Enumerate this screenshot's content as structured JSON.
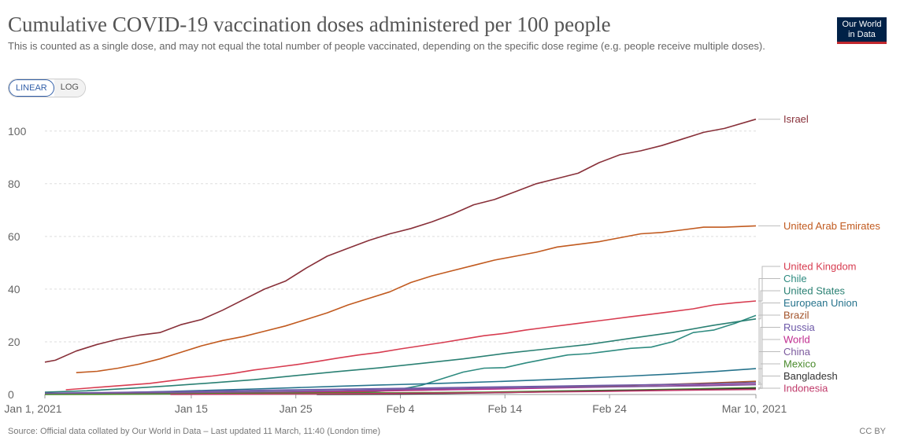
{
  "header": {
    "title": "Cumulative COVID-19 vaccination doses administered per 100 people",
    "subtitle": "This is counted as a single dose, and may not equal the total number of people vaccinated, depending on the specific dose regime (e.g. people receive multiple doses).",
    "logo_line1": "Our World",
    "logo_line2": "in Data"
  },
  "controls": {
    "linear_label": "LINEAR",
    "log_label": "LOG",
    "active": "LINEAR"
  },
  "footer": {
    "source": "Source: Official data collated by Our World in Data – Last updated 11 March, 11:40 (London time)",
    "license": "CC BY"
  },
  "chart_data": {
    "type": "line",
    "title": "Cumulative COVID-19 vaccination doses administered per 100 people",
    "xlabel": "",
    "ylabel": "",
    "x_domain": [
      "2021-01-01",
      "2021-03-10"
    ],
    "x_ticks": [
      {
        "date": "2021-01-01",
        "label": "Jan 1, 2021"
      },
      {
        "date": "2021-01-15",
        "label": "Jan 15"
      },
      {
        "date": "2021-01-25",
        "label": "Jan 25"
      },
      {
        "date": "2021-02-04",
        "label": "Feb 4"
      },
      {
        "date": "2021-02-14",
        "label": "Feb 14"
      },
      {
        "date": "2021-02-24",
        "label": "Feb 24"
      },
      {
        "date": "2021-03-10",
        "label": "Mar 10, 2021"
      }
    ],
    "y_ticks": [
      0,
      20,
      40,
      60,
      80,
      100
    ],
    "ylim": [
      0,
      105
    ],
    "grid": "horizontal-dashed",
    "legend_position": "right (end-of-line labels)",
    "series": [
      {
        "name": "Israel",
        "color": "#883039",
        "points": [
          [
            "2021-01-01",
            12.3
          ],
          [
            "2021-01-02",
            13
          ],
          [
            "2021-01-04",
            16.5
          ],
          [
            "2021-01-06",
            19
          ],
          [
            "2021-01-08",
            21
          ],
          [
            "2021-01-10",
            22.5
          ],
          [
            "2021-01-12",
            23.5
          ],
          [
            "2021-01-14",
            26.5
          ],
          [
            "2021-01-16",
            28.5
          ],
          [
            "2021-01-18",
            32
          ],
          [
            "2021-01-20",
            36
          ],
          [
            "2021-01-22",
            40
          ],
          [
            "2021-01-24",
            43
          ],
          [
            "2021-01-26",
            48
          ],
          [
            "2021-01-28",
            52.5
          ],
          [
            "2021-01-30",
            55.5
          ],
          [
            "2021-02-01",
            58.5
          ],
          [
            "2021-02-03",
            61
          ],
          [
            "2021-02-05",
            63
          ],
          [
            "2021-02-07",
            65.5
          ],
          [
            "2021-02-09",
            68.5
          ],
          [
            "2021-02-11",
            72
          ],
          [
            "2021-02-13",
            74
          ],
          [
            "2021-02-15",
            77
          ],
          [
            "2021-02-17",
            80
          ],
          [
            "2021-02-19",
            82
          ],
          [
            "2021-02-21",
            84
          ],
          [
            "2021-02-23",
            88
          ],
          [
            "2021-02-25",
            91
          ],
          [
            "2021-02-27",
            92.5
          ],
          [
            "2021-03-01",
            94.5
          ],
          [
            "2021-03-03",
            97
          ],
          [
            "2021-03-05",
            99.5
          ],
          [
            "2021-03-07",
            101
          ],
          [
            "2021-03-10",
            104.5
          ]
        ]
      },
      {
        "name": "United Arab Emirates",
        "color": "#c15a1f",
        "points": [
          [
            "2021-01-04",
            8.3
          ],
          [
            "2021-01-06",
            8.8
          ],
          [
            "2021-01-08",
            10
          ],
          [
            "2021-01-10",
            11.5
          ],
          [
            "2021-01-12",
            13.5
          ],
          [
            "2021-01-14",
            16
          ],
          [
            "2021-01-16",
            18.5
          ],
          [
            "2021-01-18",
            20.5
          ],
          [
            "2021-01-20",
            22
          ],
          [
            "2021-01-22",
            24
          ],
          [
            "2021-01-24",
            26
          ],
          [
            "2021-01-26",
            28.5
          ],
          [
            "2021-01-28",
            31
          ],
          [
            "2021-01-30",
            34
          ],
          [
            "2021-02-01",
            36.5
          ],
          [
            "2021-02-03",
            39
          ],
          [
            "2021-02-05",
            42.5
          ],
          [
            "2021-02-07",
            45
          ],
          [
            "2021-02-09",
            47
          ],
          [
            "2021-02-11",
            49
          ],
          [
            "2021-02-13",
            51
          ],
          [
            "2021-02-15",
            52.5
          ],
          [
            "2021-02-17",
            54
          ],
          [
            "2021-02-19",
            56
          ],
          [
            "2021-02-21",
            57
          ],
          [
            "2021-02-23",
            58
          ],
          [
            "2021-02-25",
            59.5
          ],
          [
            "2021-02-27",
            61
          ],
          [
            "2021-03-01",
            61.5
          ],
          [
            "2021-03-03",
            62.5
          ],
          [
            "2021-03-05",
            63.5
          ],
          [
            "2021-03-07",
            63.5
          ],
          [
            "2021-03-10",
            64
          ]
        ]
      },
      {
        "name": "United Kingdom",
        "color": "#d73c50",
        "points": [
          [
            "2021-01-03",
            1.8
          ],
          [
            "2021-01-05",
            2.4
          ],
          [
            "2021-01-07",
            3
          ],
          [
            "2021-01-09",
            3.6
          ],
          [
            "2021-01-11",
            4.2
          ],
          [
            "2021-01-13",
            5.2
          ],
          [
            "2021-01-15",
            6.2
          ],
          [
            "2021-01-17",
            7
          ],
          [
            "2021-01-19",
            8
          ],
          [
            "2021-01-21",
            9.3
          ],
          [
            "2021-01-23",
            10.3
          ],
          [
            "2021-01-25",
            11.3
          ],
          [
            "2021-01-27",
            12.5
          ],
          [
            "2021-01-29",
            13.8
          ],
          [
            "2021-01-31",
            15
          ],
          [
            "2021-02-02",
            16
          ],
          [
            "2021-02-04",
            17.3
          ],
          [
            "2021-02-06",
            18.5
          ],
          [
            "2021-02-08",
            19.7
          ],
          [
            "2021-02-10",
            21
          ],
          [
            "2021-02-12",
            22.3
          ],
          [
            "2021-02-14",
            23.2
          ],
          [
            "2021-02-16",
            24.5
          ],
          [
            "2021-02-18",
            25.5
          ],
          [
            "2021-02-20",
            26.5
          ],
          [
            "2021-02-22",
            27.5
          ],
          [
            "2021-02-24",
            28.5
          ],
          [
            "2021-02-26",
            29.5
          ],
          [
            "2021-02-28",
            30.5
          ],
          [
            "2021-03-02",
            31.5
          ],
          [
            "2021-03-04",
            32.5
          ],
          [
            "2021-03-06",
            34
          ],
          [
            "2021-03-08",
            34.8
          ],
          [
            "2021-03-10",
            35.5
          ]
        ]
      },
      {
        "name": "Chile",
        "color": "#2e8b80",
        "points": [
          [
            "2021-01-01",
            0.1
          ],
          [
            "2021-01-10",
            0.3
          ],
          [
            "2021-01-20",
            0.5
          ],
          [
            "2021-01-31",
            0.8
          ],
          [
            "2021-02-02",
            1.2
          ],
          [
            "2021-02-04",
            2
          ],
          [
            "2021-02-06",
            3.5
          ],
          [
            "2021-02-08",
            6
          ],
          [
            "2021-02-10",
            8.5
          ],
          [
            "2021-02-12",
            10
          ],
          [
            "2021-02-14",
            10.2
          ],
          [
            "2021-02-16",
            12
          ],
          [
            "2021-02-18",
            13.5
          ],
          [
            "2021-02-20",
            15
          ],
          [
            "2021-02-22",
            15.5
          ],
          [
            "2021-02-24",
            16.5
          ],
          [
            "2021-02-26",
            17.5
          ],
          [
            "2021-02-28",
            18
          ],
          [
            "2021-03-02",
            20
          ],
          [
            "2021-03-04",
            23.5
          ],
          [
            "2021-03-06",
            24.5
          ],
          [
            "2021-03-08",
            27
          ],
          [
            "2021-03-10",
            30
          ]
        ]
      },
      {
        "name": "United States",
        "color": "#2a8073",
        "points": [
          [
            "2021-01-01",
            0.9
          ],
          [
            "2021-01-05",
            1.4
          ],
          [
            "2021-01-09",
            2.3
          ],
          [
            "2021-01-13",
            3.3
          ],
          [
            "2021-01-17",
            4.4
          ],
          [
            "2021-01-21",
            5.6
          ],
          [
            "2021-01-25",
            7.2
          ],
          [
            "2021-01-29",
            8.7
          ],
          [
            "2021-02-02",
            10.1
          ],
          [
            "2021-02-06",
            11.8
          ],
          [
            "2021-02-10",
            13.5
          ],
          [
            "2021-02-14",
            15.6
          ],
          [
            "2021-02-18",
            17.3
          ],
          [
            "2021-02-22",
            19
          ],
          [
            "2021-02-26",
            21.3
          ],
          [
            "2021-03-02",
            23.5
          ],
          [
            "2021-03-06",
            26.3
          ],
          [
            "2021-03-10",
            28.7
          ]
        ]
      },
      {
        "name": "European Union",
        "color": "#26738c",
        "points": [
          [
            "2021-01-01",
            0.1
          ],
          [
            "2021-01-05",
            0.4
          ],
          [
            "2021-01-09",
            0.8
          ],
          [
            "2021-01-13",
            1.2
          ],
          [
            "2021-01-17",
            1.6
          ],
          [
            "2021-01-21",
            2.1
          ],
          [
            "2021-01-25",
            2.6
          ],
          [
            "2021-01-29",
            3.1
          ],
          [
            "2021-02-02",
            3.6
          ],
          [
            "2021-02-06",
            4
          ],
          [
            "2021-02-10",
            4.5
          ],
          [
            "2021-02-14",
            5
          ],
          [
            "2021-02-18",
            5.6
          ],
          [
            "2021-02-22",
            6.3
          ],
          [
            "2021-02-26",
            7
          ],
          [
            "2021-03-02",
            7.8
          ],
          [
            "2021-03-06",
            8.7
          ],
          [
            "2021-03-10",
            9.8
          ]
        ]
      },
      {
        "name": "Brazil",
        "color": "#a2532a",
        "points": [
          [
            "2021-01-17",
            0.1
          ],
          [
            "2021-01-21",
            0.3
          ],
          [
            "2021-01-25",
            0.6
          ],
          [
            "2021-01-29",
            0.9
          ],
          [
            "2021-02-02",
            1.3
          ],
          [
            "2021-02-06",
            1.6
          ],
          [
            "2021-02-10",
            2
          ],
          [
            "2021-02-14",
            2.3
          ],
          [
            "2021-02-18",
            2.7
          ],
          [
            "2021-02-22",
            3.1
          ],
          [
            "2021-02-26",
            3.5
          ],
          [
            "2021-03-02",
            3.9
          ],
          [
            "2021-03-06",
            4.4
          ],
          [
            "2021-03-10",
            5
          ]
        ]
      },
      {
        "name": "Russia",
        "color": "#6d58a8",
        "points": [
          [
            "2021-01-01",
            0.5
          ],
          [
            "2021-01-08",
            0.8
          ],
          [
            "2021-01-15",
            1.2
          ],
          [
            "2021-01-22",
            1.6
          ],
          [
            "2021-01-29",
            2
          ],
          [
            "2021-02-05",
            2.4
          ],
          [
            "2021-02-12",
            2.8
          ],
          [
            "2021-02-19",
            3.2
          ],
          [
            "2021-02-26",
            3.6
          ],
          [
            "2021-03-05",
            4
          ],
          [
            "2021-03-10",
            4.5
          ]
        ]
      },
      {
        "name": "World",
        "color": "#c02c8f",
        "points": [
          [
            "2021-01-01",
            0.1
          ],
          [
            "2021-01-08",
            0.3
          ],
          [
            "2021-01-15",
            0.6
          ],
          [
            "2021-01-22",
            0.9
          ],
          [
            "2021-01-29",
            1.2
          ],
          [
            "2021-02-05",
            1.6
          ],
          [
            "2021-02-12",
            2
          ],
          [
            "2021-02-19",
            2.5
          ],
          [
            "2021-02-26",
            3
          ],
          [
            "2021-03-05",
            3.5
          ],
          [
            "2021-03-10",
            3.9
          ]
        ]
      },
      {
        "name": "China",
        "color": "#7c5a9e",
        "points": [
          [
            "2021-01-01",
            0.3
          ],
          [
            "2021-01-08",
            0.6
          ],
          [
            "2021-01-15",
            0.8
          ],
          [
            "2021-01-22",
            1.1
          ],
          [
            "2021-01-29",
            1.5
          ],
          [
            "2021-02-05",
            2
          ],
          [
            "2021-02-12",
            2.4
          ],
          [
            "2021-02-19",
            2.7
          ],
          [
            "2021-02-26",
            3
          ],
          [
            "2021-03-05",
            3.3
          ],
          [
            "2021-03-10",
            3.7
          ]
        ]
      },
      {
        "name": "Mexico",
        "color": "#4a8a2c",
        "points": [
          [
            "2021-01-01",
            0
          ],
          [
            "2021-01-08",
            0.1
          ],
          [
            "2021-01-15",
            0.3
          ],
          [
            "2021-01-22",
            0.5
          ],
          [
            "2021-01-29",
            0.6
          ],
          [
            "2021-02-05",
            0.7
          ],
          [
            "2021-02-12",
            0.9
          ],
          [
            "2021-02-19",
            1.3
          ],
          [
            "2021-02-26",
            1.7
          ],
          [
            "2021-03-05",
            2.2
          ],
          [
            "2021-03-10",
            2.6
          ]
        ]
      },
      {
        "name": "Bangladesh",
        "color": "#333333",
        "points": [
          [
            "2021-01-27",
            0
          ],
          [
            "2021-02-03",
            0.1
          ],
          [
            "2021-02-07",
            0.3
          ],
          [
            "2021-02-12",
            0.6
          ],
          [
            "2021-02-18",
            1
          ],
          [
            "2021-02-24",
            1.4
          ],
          [
            "2021-03-02",
            1.7
          ],
          [
            "2021-03-10",
            2.3
          ]
        ]
      },
      {
        "name": "Indonesia",
        "color": "#c03a6a",
        "points": [
          [
            "2021-01-13",
            0
          ],
          [
            "2021-01-20",
            0.1
          ],
          [
            "2021-01-27",
            0.2
          ],
          [
            "2021-02-03",
            0.4
          ],
          [
            "2021-02-10",
            0.6
          ],
          [
            "2021-02-17",
            0.9
          ],
          [
            "2021-02-24",
            1.2
          ],
          [
            "2021-03-03",
            1.6
          ],
          [
            "2021-03-10",
            1.9
          ]
        ]
      }
    ]
  }
}
